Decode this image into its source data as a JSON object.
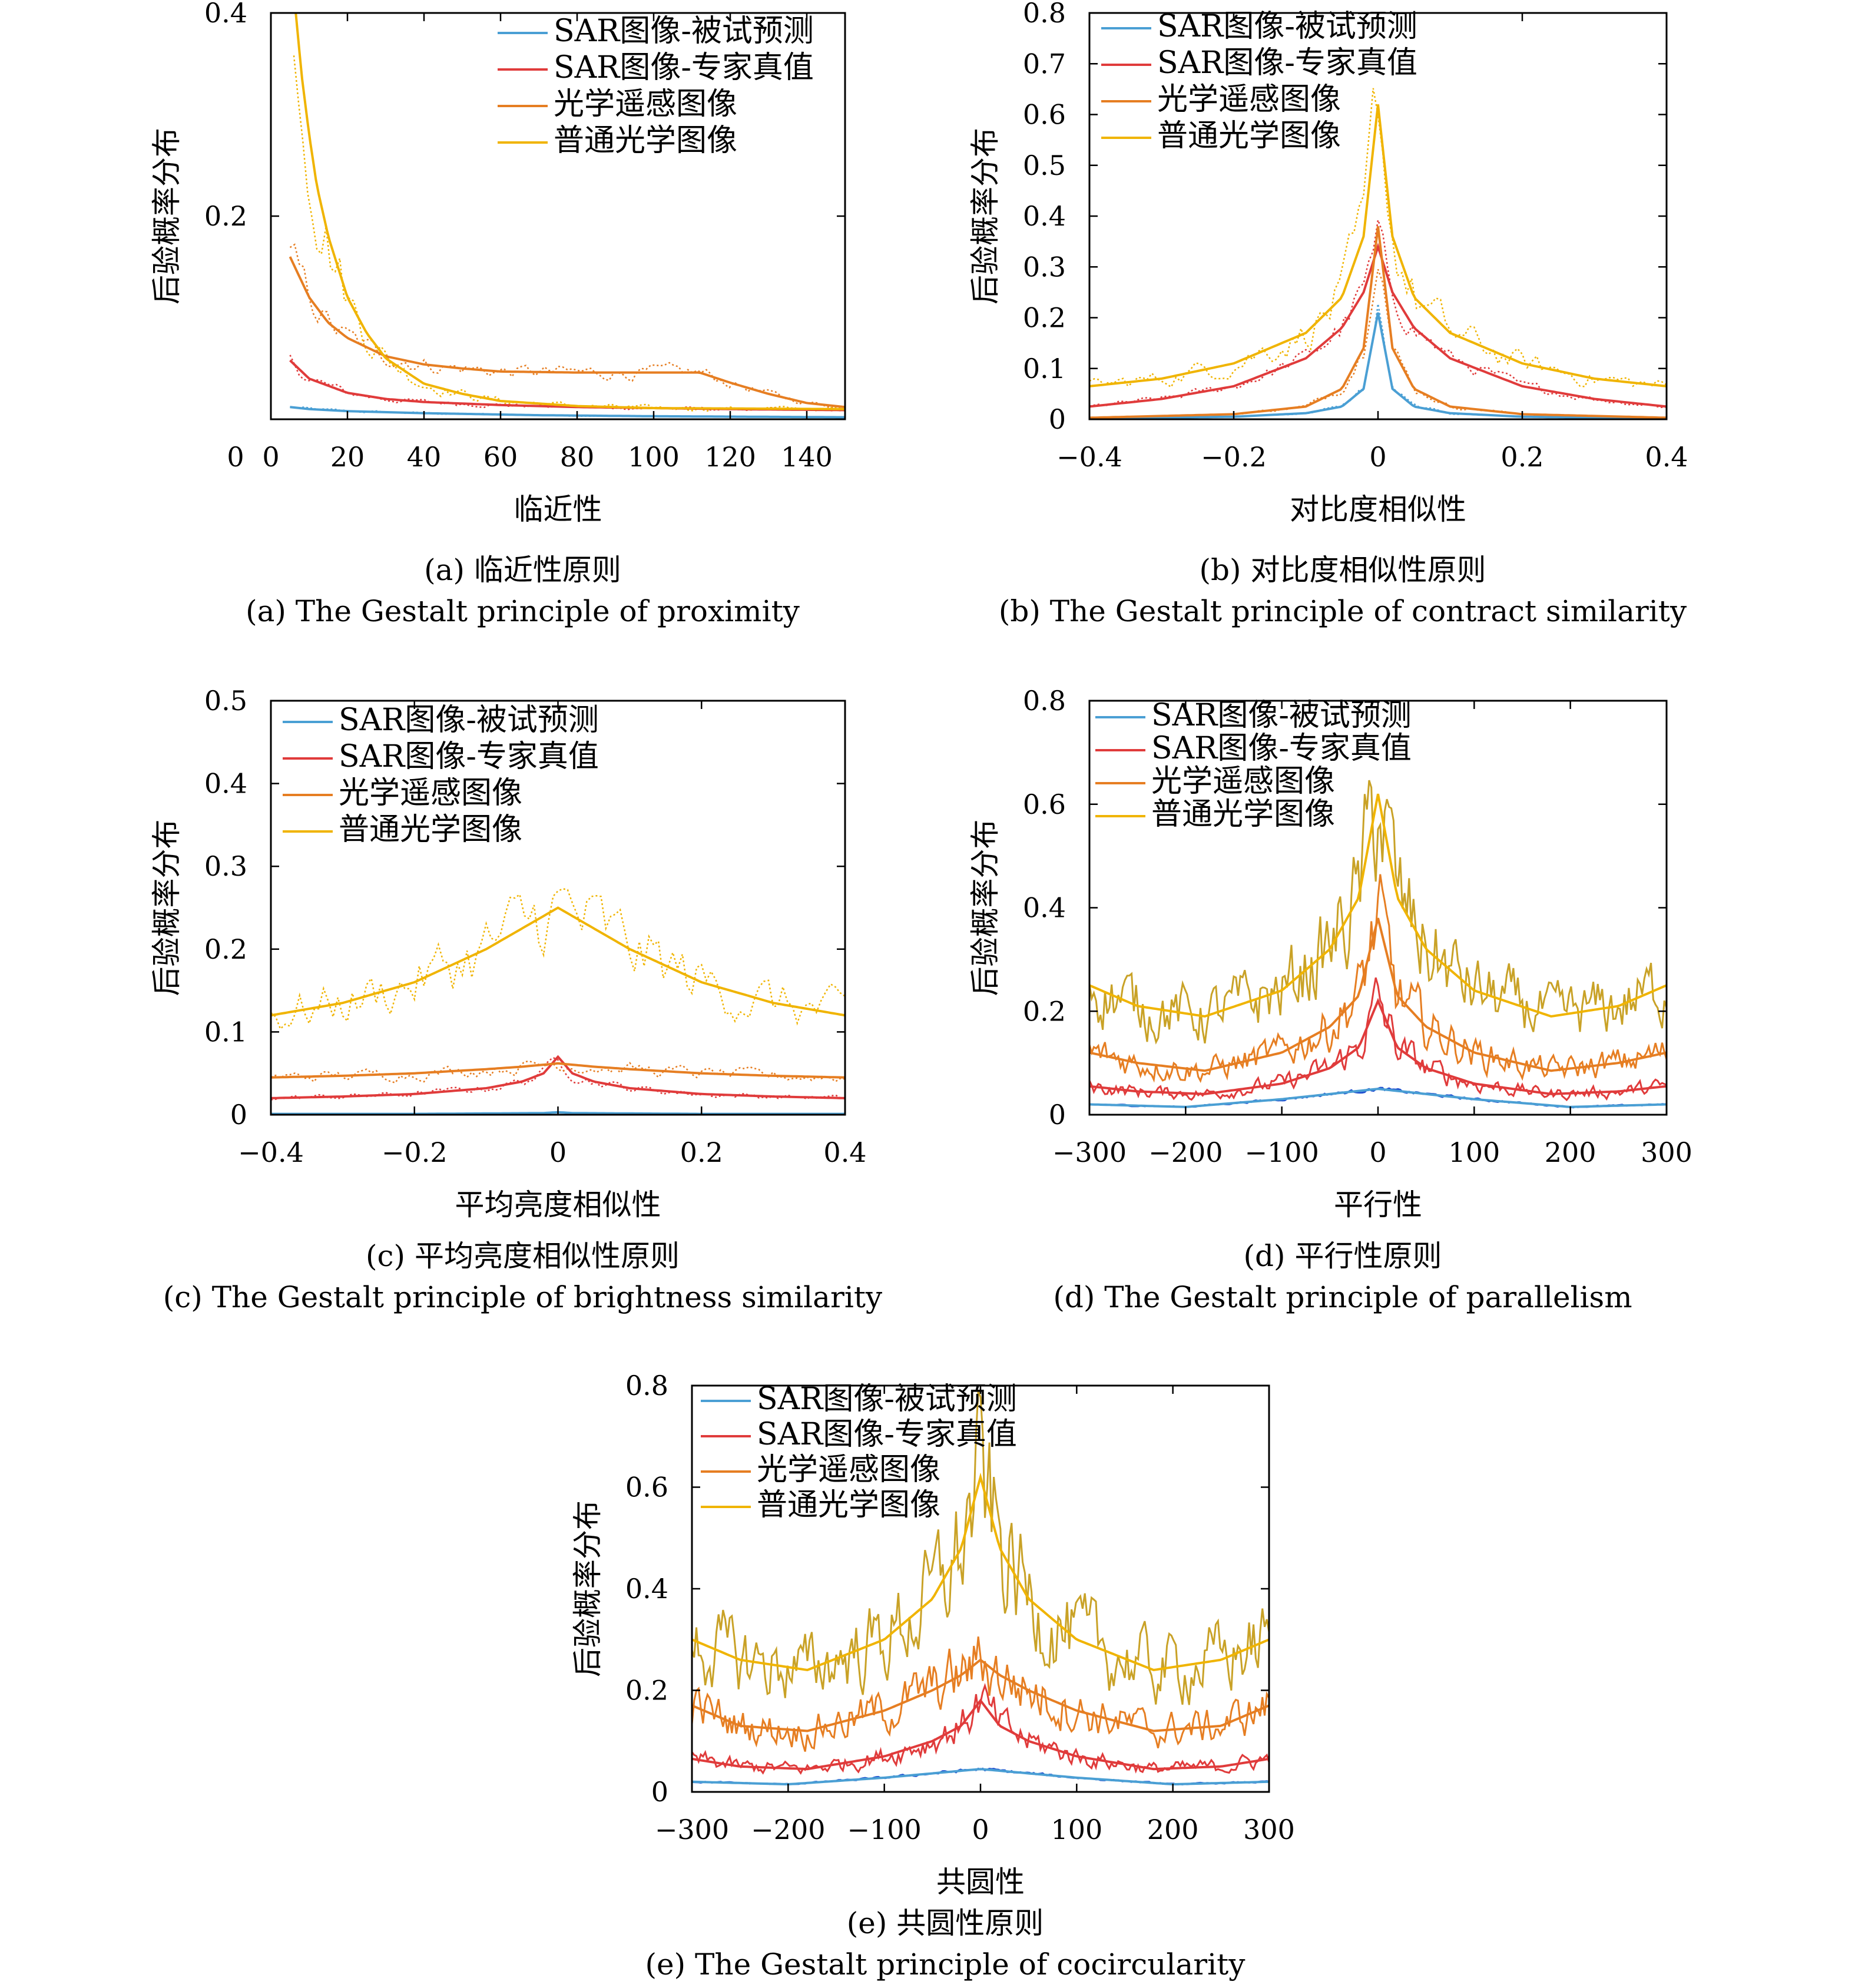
{
  "colors": {
    "sar_subject": "#4a9fd4",
    "sar_expert": "#e03b3b",
    "optical_rs": "#e67e22",
    "optical_common": "#f0b400",
    "sar_subject_noisy": "#2050d0",
    "optical_common_noisy": "#c9a227",
    "axis": "#000000"
  },
  "legend_labels": [
    "SAR图像-被试预测",
    "SAR图像-专家真值",
    "光学遥感图像",
    "普通光学图像"
  ],
  "chart_data": [
    {
      "id": "a",
      "type": "line",
      "xlabel": "临近性",
      "ylabel": "后验概率分布",
      "caption_cn": "(a) 临近性原则",
      "caption_en": "(a) The Gestalt principle of proximity",
      "xlim": [
        0,
        150
      ],
      "ylim": [
        0,
        0.4
      ],
      "xticks": [
        0,
        20,
        40,
        60,
        80,
        100,
        120,
        140
      ],
      "yticks": [
        0.2,
        0.4
      ],
      "legend_position": "top-right",
      "series": [
        {
          "name": "SAR图像-被试预测",
          "key": "sar_subject",
          "x": [
            5,
            10,
            20,
            40,
            70,
            100,
            150
          ],
          "y": [
            0.012,
            0.01,
            0.008,
            0.006,
            0.004,
            0.003,
            0.002
          ]
        },
        {
          "name": "SAR图像-专家真值",
          "key": "sar_expert",
          "x": [
            5,
            10,
            20,
            30,
            40,
            60,
            80,
            100,
            120,
            150
          ],
          "y": [
            0.058,
            0.04,
            0.026,
            0.02,
            0.017,
            0.014,
            0.012,
            0.011,
            0.01,
            0.009
          ]
        },
        {
          "name": "光学遥感图像",
          "key": "optical_rs",
          "x": [
            5,
            10,
            15,
            20,
            30,
            40,
            50,
            60,
            80,
            100,
            112,
            120,
            130,
            140,
            150
          ],
          "y": [
            0.16,
            0.12,
            0.095,
            0.08,
            0.062,
            0.054,
            0.05,
            0.047,
            0.046,
            0.046,
            0.046,
            0.036,
            0.025,
            0.016,
            0.012
          ]
        },
        {
          "name": "普通光学图像",
          "key": "optical_common",
          "x": [
            6,
            8,
            10,
            12,
            15,
            20,
            25,
            30,
            40,
            50,
            60,
            80,
            100,
            150
          ],
          "y": [
            0.42,
            0.34,
            0.28,
            0.23,
            0.18,
            0.12,
            0.085,
            0.06,
            0.035,
            0.025,
            0.018,
            0.013,
            0.011,
            0.01
          ]
        }
      ]
    },
    {
      "id": "b",
      "type": "line",
      "xlabel": "对比度相似性",
      "ylabel": "后验概率分布",
      "caption_cn": "(b) 对比度相似性原则",
      "caption_en": "(b) The Gestalt principle of contract similarity",
      "xlim": [
        -0.4,
        0.4
      ],
      "ylim": [
        0,
        0.8
      ],
      "xticks": [
        -0.4,
        -0.2,
        0,
        0.2,
        0.4
      ],
      "yticks": [
        0,
        0.1,
        0.2,
        0.3,
        0.4,
        0.5,
        0.6,
        0.7,
        0.8
      ],
      "legend_position": "top-left",
      "series": [
        {
          "name": "SAR图像-被试预测",
          "key": "sar_subject",
          "x": [
            -0.4,
            -0.2,
            -0.1,
            -0.05,
            -0.02,
            0,
            0.02,
            0.05,
            0.1,
            0.2,
            0.4
          ],
          "y": [
            0.002,
            0.005,
            0.012,
            0.025,
            0.06,
            0.21,
            0.06,
            0.025,
            0.012,
            0.005,
            0.002
          ]
        },
        {
          "name": "SAR图像-专家真值",
          "key": "sar_expert",
          "x": [
            -0.4,
            -0.3,
            -0.2,
            -0.1,
            -0.05,
            -0.02,
            0,
            0.02,
            0.05,
            0.1,
            0.2,
            0.3,
            0.4
          ],
          "y": [
            0.025,
            0.04,
            0.065,
            0.12,
            0.18,
            0.25,
            0.34,
            0.25,
            0.18,
            0.12,
            0.065,
            0.04,
            0.025
          ]
        },
        {
          "name": "光学遥感图像",
          "key": "optical_rs",
          "x": [
            -0.4,
            -0.2,
            -0.1,
            -0.05,
            -0.02,
            0,
            0.02,
            0.05,
            0.1,
            0.2,
            0.4
          ],
          "y": [
            0.003,
            0.01,
            0.025,
            0.06,
            0.14,
            0.38,
            0.14,
            0.06,
            0.025,
            0.01,
            0.003
          ]
        },
        {
          "name": "普通光学图像",
          "key": "optical_common",
          "x": [
            -0.4,
            -0.3,
            -0.2,
            -0.1,
            -0.05,
            -0.02,
            0,
            0.02,
            0.05,
            0.1,
            0.2,
            0.3,
            0.4
          ],
          "y": [
            0.065,
            0.08,
            0.11,
            0.17,
            0.24,
            0.36,
            0.62,
            0.36,
            0.24,
            0.17,
            0.11,
            0.08,
            0.065
          ]
        }
      ]
    },
    {
      "id": "c",
      "type": "line",
      "xlabel": "平均亮度相似性",
      "ylabel": "后验概率分布",
      "caption_cn": "(c) 平均亮度相似性原则",
      "caption_en": "(c) The Gestalt principle of brightness similarity",
      "xlim": [
        -0.4,
        0.4
      ],
      "ylim": [
        0,
        0.5
      ],
      "xticks": [
        -0.4,
        -0.2,
        0,
        0.2,
        0.4
      ],
      "yticks": [
        0,
        0.1,
        0.2,
        0.3,
        0.4,
        0.5
      ],
      "legend_position": "top-left",
      "series": [
        {
          "name": "SAR图像-被试预测",
          "key": "sar_subject",
          "x": [
            -0.4,
            -0.2,
            -0.02,
            0,
            0.02,
            0.2,
            0.4
          ],
          "y": [
            0.001,
            0.001,
            0.002,
            0.003,
            0.002,
            0.001,
            0.001
          ]
        },
        {
          "name": "SAR图像-专家真值",
          "key": "sar_expert",
          "x": [
            -0.4,
            -0.3,
            -0.2,
            -0.1,
            -0.05,
            -0.02,
            0,
            0.02,
            0.05,
            0.1,
            0.2,
            0.3,
            0.4
          ],
          "y": [
            0.02,
            0.022,
            0.025,
            0.032,
            0.04,
            0.05,
            0.07,
            0.05,
            0.04,
            0.032,
            0.025,
            0.022,
            0.02
          ]
        },
        {
          "name": "光学遥感图像",
          "key": "optical_rs",
          "x": [
            -0.4,
            -0.3,
            -0.2,
            -0.1,
            -0.05,
            0,
            0.05,
            0.1,
            0.2,
            0.3,
            0.4
          ],
          "y": [
            0.045,
            0.047,
            0.05,
            0.055,
            0.058,
            0.062,
            0.058,
            0.055,
            0.05,
            0.047,
            0.045
          ]
        },
        {
          "name": "普通光学图像",
          "key": "optical_common",
          "x": [
            -0.4,
            -0.3,
            -0.2,
            -0.1,
            0,
            0.1,
            0.2,
            0.3,
            0.4
          ],
          "y": [
            0.12,
            0.135,
            0.16,
            0.2,
            0.25,
            0.2,
            0.16,
            0.135,
            0.12
          ]
        }
      ]
    },
    {
      "id": "d",
      "type": "line",
      "xlabel": "平行性",
      "ylabel": "后验概率分布",
      "caption_cn": "(d) 平行性原则",
      "caption_en": "(d) The Gestalt principle of parallelism",
      "xlim": [
        -300,
        300
      ],
      "ylim": [
        0,
        0.8
      ],
      "xticks": [
        -300,
        -200,
        -100,
        0,
        100,
        200,
        300
      ],
      "yticks": [
        0,
        0.2,
        0.4,
        0.6,
        0.8
      ],
      "legend_position": "top-left",
      "series": [
        {
          "name": "SAR图像-被试预测",
          "key": "sar_subject",
          "x": [
            -300,
            -200,
            -100,
            0,
            100,
            200,
            300
          ],
          "y": [
            0.02,
            0.015,
            0.03,
            0.05,
            0.03,
            0.015,
            0.02
          ]
        },
        {
          "name": "SAR图像-专家真值",
          "key": "sar_expert",
          "x": [
            -300,
            -250,
            -180,
            -100,
            -50,
            -20,
            0,
            20,
            50,
            100,
            180,
            250,
            300
          ],
          "y": [
            0.055,
            0.045,
            0.04,
            0.06,
            0.09,
            0.13,
            0.22,
            0.13,
            0.09,
            0.06,
            0.04,
            0.045,
            0.055
          ]
        },
        {
          "name": "光学遥感图像",
          "key": "optical_rs",
          "x": [
            -300,
            -250,
            -180,
            -100,
            -50,
            -20,
            0,
            20,
            50,
            100,
            180,
            250,
            300
          ],
          "y": [
            0.12,
            0.1,
            0.085,
            0.12,
            0.17,
            0.23,
            0.38,
            0.23,
            0.17,
            0.12,
            0.085,
            0.1,
            0.12
          ]
        },
        {
          "name": "普通光学图像",
          "key": "optical_common",
          "x": [
            -300,
            -250,
            -180,
            -100,
            -50,
            -20,
            0,
            20,
            50,
            100,
            180,
            250,
            300
          ],
          "y": [
            0.25,
            0.21,
            0.19,
            0.24,
            0.32,
            0.42,
            0.62,
            0.42,
            0.32,
            0.24,
            0.19,
            0.21,
            0.25
          ]
        }
      ]
    },
    {
      "id": "e",
      "type": "line",
      "xlabel": "共圆性",
      "ylabel": "后验概率分布",
      "caption_cn": "(e) 共圆性原则",
      "caption_en": "(e) The Gestalt principle of cocircularity",
      "xlim": [
        -300,
        300
      ],
      "ylim": [
        0,
        0.8
      ],
      "xticks": [
        -300,
        -200,
        -100,
        0,
        100,
        200,
        300
      ],
      "yticks": [
        0,
        0.2,
        0.4,
        0.6,
        0.8
      ],
      "legend_position": "top-left",
      "series": [
        {
          "name": "SAR图像-被试预测",
          "key": "sar_subject",
          "x": [
            -300,
            -200,
            -100,
            0,
            100,
            200,
            300
          ],
          "y": [
            0.02,
            0.015,
            0.028,
            0.045,
            0.028,
            0.015,
            0.02
          ]
        },
        {
          "name": "SAR图像-专家真值",
          "key": "sar_expert",
          "x": [
            -300,
            -250,
            -180,
            -100,
            -50,
            -20,
            0,
            20,
            50,
            100,
            180,
            250,
            300
          ],
          "y": [
            0.065,
            0.05,
            0.045,
            0.07,
            0.1,
            0.13,
            0.18,
            0.13,
            0.1,
            0.07,
            0.045,
            0.05,
            0.065
          ]
        },
        {
          "name": "光学遥感图像",
          "key": "optical_rs",
          "x": [
            -300,
            -250,
            -180,
            -100,
            -50,
            -20,
            0,
            20,
            50,
            100,
            180,
            250,
            300
          ],
          "y": [
            0.17,
            0.13,
            0.12,
            0.16,
            0.2,
            0.23,
            0.26,
            0.23,
            0.2,
            0.16,
            0.12,
            0.13,
            0.17
          ]
        },
        {
          "name": "普通光学图像",
          "key": "optical_common",
          "x": [
            -300,
            -250,
            -180,
            -100,
            -50,
            -20,
            0,
            20,
            50,
            100,
            180,
            250,
            300
          ],
          "y": [
            0.3,
            0.26,
            0.24,
            0.3,
            0.38,
            0.48,
            0.62,
            0.48,
            0.38,
            0.3,
            0.24,
            0.26,
            0.3
          ]
        }
      ]
    }
  ]
}
